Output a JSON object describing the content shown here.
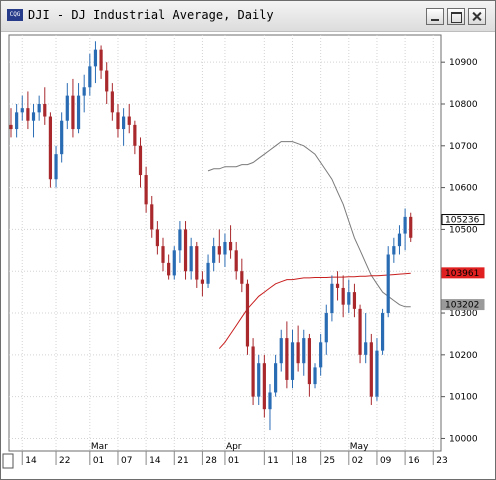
{
  "window": {
    "title": "DJI - DJ Industrial Average, Daily",
    "icon": "chart-app-icon",
    "icon_label": "CQG"
  },
  "chart_data": {
    "type": "candlestick",
    "title": "DJI - DJ Industrial Average, Daily",
    "ylim": [
      9970,
      10965
    ],
    "y_ticks": [
      "10900",
      "10800",
      "10700",
      "10600",
      "10500",
      "10400",
      "10300",
      "10200",
      "10100",
      "10000"
    ],
    "y_tick_values": [
      10900,
      10800,
      10700,
      10600,
      10500,
      10400,
      10300,
      10200,
      10100,
      10000
    ],
    "x_ticks": [
      "14",
      "22",
      "01",
      "07",
      "14",
      "21",
      "28",
      "01",
      "11",
      "18",
      "25",
      "02",
      "09",
      "16",
      "23"
    ],
    "x_tick_bar_index": [
      2,
      8,
      14,
      19,
      24,
      29,
      34,
      38,
      45,
      50,
      55,
      60,
      65,
      70,
      75
    ],
    "month_labels": [
      {
        "label": "Mar",
        "bar_index": 14
      },
      {
        "label": "Apr",
        "bar_index": 38
      },
      {
        "label": "May",
        "bar_index": 60
      }
    ],
    "grid": true,
    "up_color": "#2a6cb4",
    "down_color": "#a8282c",
    "candles": [
      [
        10750,
        10790,
        10720,
        10740
      ],
      [
        10740,
        10800,
        10720,
        10780
      ],
      [
        10780,
        10820,
        10760,
        10790
      ],
      [
        10790,
        10830,
        10740,
        10760
      ],
      [
        10760,
        10800,
        10720,
        10780
      ],
      [
        10780,
        10820,
        10760,
        10800
      ],
      [
        10800,
        10840,
        10750,
        10770
      ],
      [
        10770,
        10780,
        10600,
        10620
      ],
      [
        10620,
        10700,
        10600,
        10680
      ],
      [
        10680,
        10780,
        10660,
        10760
      ],
      [
        10760,
        10850,
        10740,
        10820
      ],
      [
        10820,
        10860,
        10720,
        10740
      ],
      [
        10740,
        10850,
        10730,
        10820
      ],
      [
        10820,
        10870,
        10780,
        10840
      ],
      [
        10840,
        10920,
        10820,
        10890
      ],
      [
        10890,
        10950,
        10850,
        10930
      ],
      [
        10930,
        10940,
        10860,
        10880
      ],
      [
        10880,
        10900,
        10800,
        10830
      ],
      [
        10830,
        10850,
        10760,
        10780
      ],
      [
        10780,
        10800,
        10720,
        10740
      ],
      [
        10740,
        10790,
        10700,
        10770
      ],
      [
        10770,
        10800,
        10730,
        10750
      ],
      [
        10750,
        10760,
        10680,
        10700
      ],
      [
        10700,
        10720,
        10600,
        10630
      ],
      [
        10630,
        10650,
        10540,
        10560
      ],
      [
        10560,
        10580,
        10480,
        10500
      ],
      [
        10500,
        10520,
        10440,
        10460
      ],
      [
        10460,
        10480,
        10400,
        10420
      ],
      [
        10420,
        10440,
        10380,
        10390
      ],
      [
        10390,
        10460,
        10380,
        10450
      ],
      [
        10450,
        10520,
        10420,
        10500
      ],
      [
        10500,
        10520,
        10380,
        10400
      ],
      [
        10400,
        10480,
        10380,
        10460
      ],
      [
        10460,
        10470,
        10360,
        10380
      ],
      [
        10380,
        10400,
        10340,
        10370
      ],
      [
        10370,
        10440,
        10360,
        10420
      ],
      [
        10420,
        10480,
        10400,
        10460
      ],
      [
        10460,
        10500,
        10420,
        10440
      ],
      [
        10440,
        10490,
        10410,
        10470
      ],
      [
        10470,
        10510,
        10430,
        10450
      ],
      [
        10450,
        10470,
        10380,
        10400
      ],
      [
        10400,
        10430,
        10350,
        10370
      ],
      [
        10370,
        10380,
        10200,
        10220
      ],
      [
        10220,
        10240,
        10080,
        10100
      ],
      [
        10100,
        10200,
        10080,
        10180
      ],
      [
        10180,
        10200,
        10050,
        10070
      ],
      [
        10070,
        10130,
        10020,
        10110
      ],
      [
        10110,
        10200,
        10100,
        10180
      ],
      [
        10180,
        10260,
        10160,
        10240
      ],
      [
        10240,
        10280,
        10120,
        10140
      ],
      [
        10140,
        10260,
        10120,
        10230
      ],
      [
        10230,
        10270,
        10160,
        10180
      ],
      [
        10180,
        10260,
        10150,
        10240
      ],
      [
        10240,
        10250,
        10100,
        10130
      ],
      [
        10130,
        10180,
        10120,
        10170
      ],
      [
        10170,
        10250,
        10150,
        10230
      ],
      [
        10230,
        10320,
        10200,
        10300
      ],
      [
        10300,
        10390,
        10280,
        10370
      ],
      [
        10370,
        10400,
        10330,
        10360
      ],
      [
        10360,
        10390,
        10290,
        10320
      ],
      [
        10320,
        10380,
        10300,
        10350
      ],
      [
        10350,
        10370,
        10290,
        10310
      ],
      [
        10310,
        10320,
        10180,
        10200
      ],
      [
        10200,
        10300,
        10180,
        10230
      ],
      [
        10230,
        10250,
        10080,
        10100
      ],
      [
        10100,
        10240,
        10090,
        10210
      ],
      [
        10210,
        10310,
        10200,
        10300
      ],
      [
        10300,
        10460,
        10290,
        10440
      ],
      [
        10440,
        10480,
        10420,
        10460
      ],
      [
        10460,
        10510,
        10440,
        10490
      ],
      [
        10490,
        10550,
        10450,
        10530
      ],
      [
        10530,
        10540,
        10470,
        10480
      ]
    ],
    "ma_fast": [
      10640,
      10645,
      10645,
      10650,
      10650,
      10650,
      10655,
      10655,
      10660,
      10670,
      10680,
      10690,
      10700,
      10710,
      10710,
      10710,
      10705,
      10700,
      10690,
      10680,
      10660,
      10640,
      10620,
      10590,
      10560,
      10520,
      10480,
      10450,
      10420,
      10390,
      10370,
      10350,
      10340,
      10330,
      10320,
      10315,
      10315
    ],
    "ma_slow": [
      10215,
      10230,
      10250,
      10270,
      10290,
      10310,
      10325,
      10340,
      10350,
      10360,
      10370,
      10375,
      10380,
      10380,
      10382,
      10384,
      10384,
      10385,
      10385,
      10385,
      10386,
      10386,
      10386,
      10387,
      10387,
      10388,
      10388,
      10389,
      10389,
      10390,
      10391,
      10392,
      10393,
      10394,
      10395
    ],
    "price_tags": [
      {
        "label": "105236",
        "value": 10523.6,
        "bg": "#ffffff",
        "fg": "#000000",
        "border": "#000000"
      },
      {
        "label": "103961",
        "value": 10396.1,
        "bg": "#e02020",
        "fg": "#000000",
        "border": "#e02020"
      },
      {
        "label": "103202",
        "value": 10320.2,
        "bg": "#9a9a9a",
        "fg": "#000000",
        "border": "#9a9a9a"
      }
    ],
    "ma_fast_color": "#7a7a7a",
    "ma_slow_color": "#c81e1e"
  }
}
